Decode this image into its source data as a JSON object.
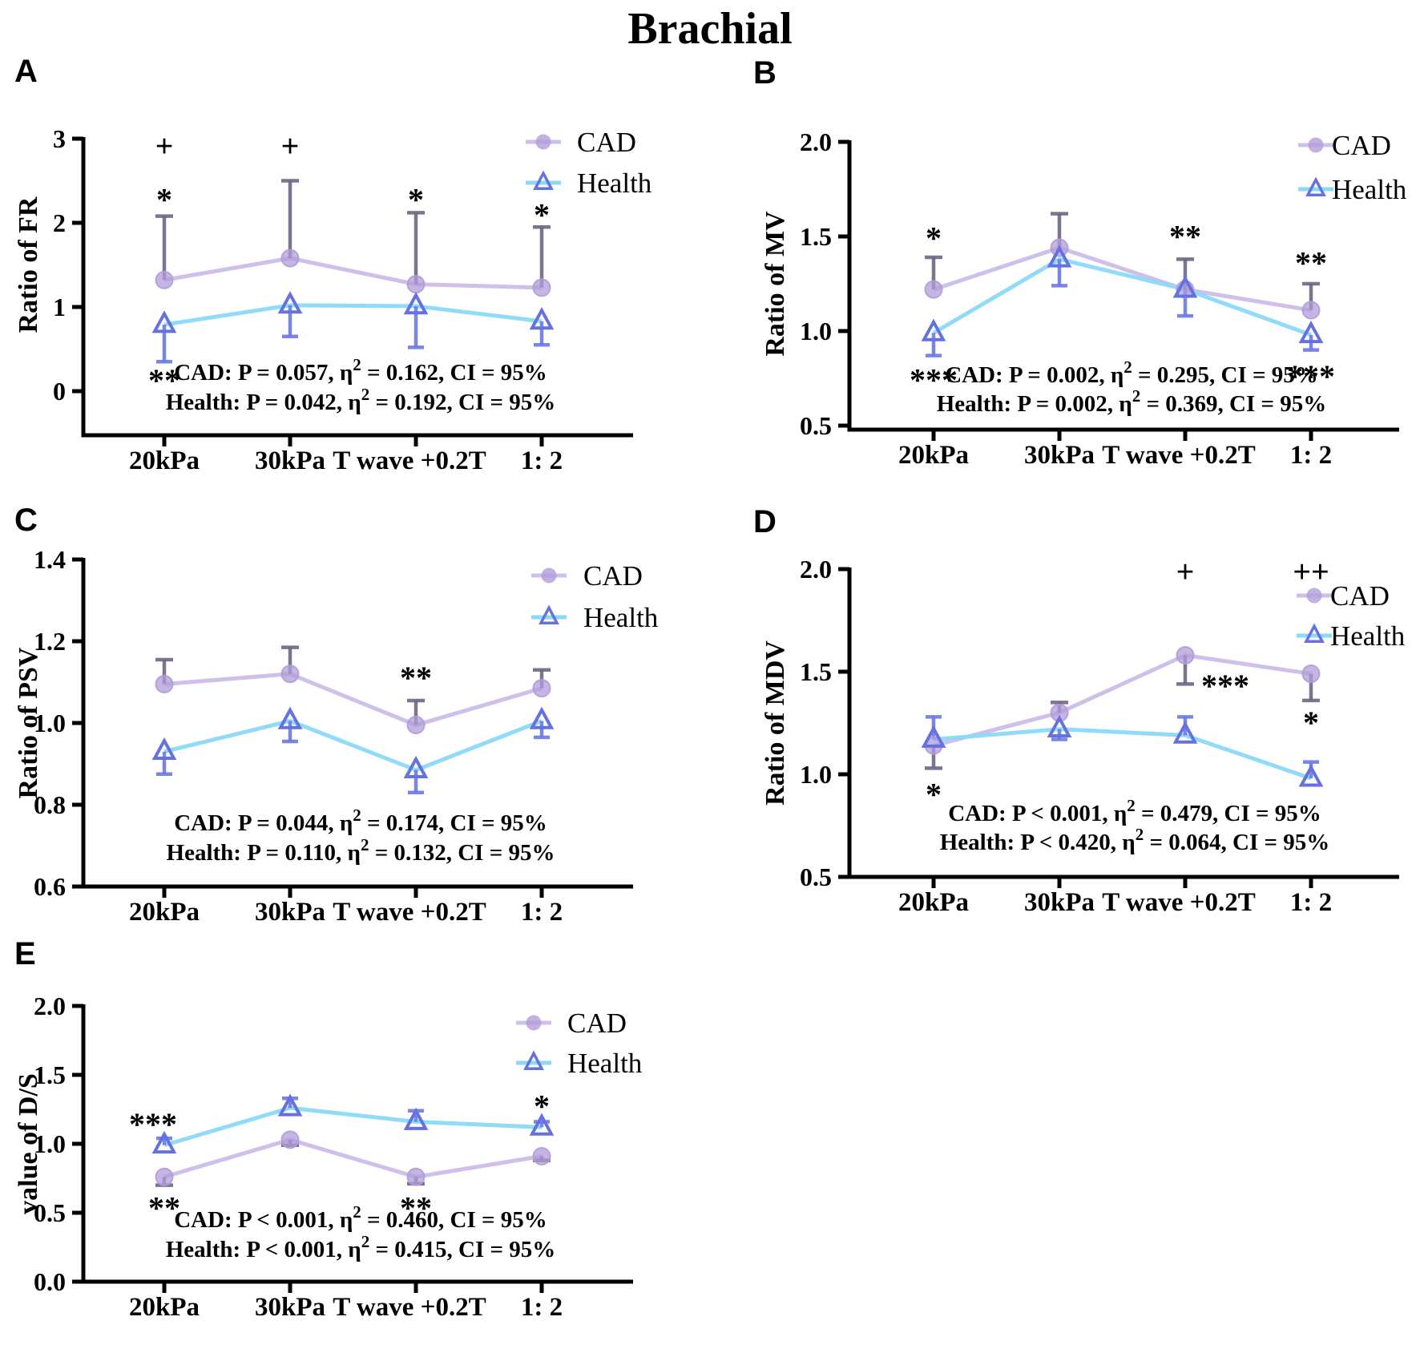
{
  "title": "Brachial",
  "colors": {
    "cad_line": "#c9b9e8",
    "cad_fill": "#b19cd8",
    "cad_error": "#6f6584",
    "health_line": "#8ad9f9",
    "health_stroke": "#6472e0",
    "health_error": "#6c79e2",
    "axis": "#000000",
    "text": "#000000"
  },
  "legend": {
    "cad_label": "CAD",
    "health_label": "Health"
  },
  "categories": [
    "20kPa",
    "30kPa",
    "T wave +0.2T",
    "1: 2"
  ],
  "chart_data": [
    {
      "id": "A",
      "type": "line",
      "panel_label": "A",
      "ylabel": "Ratio of FR",
      "ylim": [
        0,
        3
      ],
      "yticks": [
        "3",
        "2",
        "1",
        "0"
      ],
      "categories": [
        "20kPa",
        "30kPa",
        "T wave +0.2T",
        "1: 2"
      ],
      "series": [
        {
          "name": "CAD",
          "values": [
            1.32,
            1.58,
            1.27,
            1.23
          ],
          "err_up": [
            2.08,
            2.5,
            2.12,
            1.95
          ],
          "err_dn": [
            null,
            null,
            null,
            null
          ]
        },
        {
          "name": "Health",
          "values": [
            0.79,
            1.02,
            1.01,
            0.83
          ],
          "err_up": [
            null,
            null,
            null,
            null
          ],
          "err_dn": [
            0.35,
            0.65,
            0.52,
            0.55
          ]
        }
      ],
      "significance": [
        {
          "cat": 0,
          "v": 2.92,
          "text": "+"
        },
        {
          "cat": 1,
          "v": 2.92,
          "text": "+"
        },
        {
          "cat": 0,
          "v": 2.32,
          "text": "*"
        },
        {
          "cat": 2,
          "v": 2.32,
          "text": "*"
        },
        {
          "cat": 3,
          "v": 2.14,
          "text": "*"
        },
        {
          "cat": 0,
          "v": 0.17,
          "text": "**"
        }
      ],
      "annotations": [
        "CAD: P = 0.057, η² = 0.162, CI = 95%",
        "Health: P = 0.042, η² = 0.192, CI = 95%"
      ]
    },
    {
      "id": "B",
      "type": "line",
      "panel_label": "B",
      "ylabel": "Ratio of MV",
      "ylim": [
        0.5,
        2.0
      ],
      "yticks": [
        "2.0",
        "1.5",
        "1.0",
        "0.5"
      ],
      "categories": [
        "20kPa",
        "30kPa",
        "T wave +0.2T",
        "1: 2"
      ],
      "series": [
        {
          "name": "CAD",
          "values": [
            1.22,
            1.44,
            1.22,
            1.11
          ],
          "err_up": [
            1.39,
            1.62,
            1.38,
            1.25
          ],
          "err_dn": [
            null,
            null,
            null,
            null
          ]
        },
        {
          "name": "Health",
          "values": [
            0.99,
            1.38,
            1.22,
            0.98
          ],
          "err_up": [
            null,
            null,
            null,
            null
          ],
          "err_dn": [
            0.87,
            1.24,
            1.08,
            0.9
          ]
        }
      ],
      "significance": [
        {
          "cat": 0,
          "v": 1.51,
          "text": "*"
        },
        {
          "cat": 2,
          "v": 1.52,
          "text": "**"
        },
        {
          "cat": 3,
          "v": 1.38,
          "text": "**"
        },
        {
          "cat": 0,
          "v": 0.76,
          "text": "***"
        },
        {
          "cat": 3,
          "v": 0.78,
          "text": "***"
        }
      ],
      "annotations": [
        "CAD: P = 0.002, η² = 0.295, CI = 95%",
        "Health: P = 0.002, η² = 0.369, CI = 95%"
      ]
    },
    {
      "id": "C",
      "type": "line",
      "panel_label": "C",
      "ylabel": "Ratio of PSV",
      "ylim": [
        0.6,
        1.4
      ],
      "yticks": [
        "1.4",
        "1.2",
        "1.0",
        "0.8",
        "0.6"
      ],
      "categories": [
        "20kPa",
        "30kPa",
        "T wave +0.2T",
        "1: 2"
      ],
      "series": [
        {
          "name": "CAD",
          "values": [
            1.095,
            1.12,
            0.995,
            1.085
          ],
          "err_up": [
            1.155,
            1.185,
            1.055,
            1.13
          ],
          "err_dn": [
            null,
            null,
            null,
            null
          ]
        },
        {
          "name": "Health",
          "values": [
            0.93,
            1.005,
            0.885,
            1.005
          ],
          "err_up": [
            null,
            null,
            null,
            null
          ],
          "err_dn": [
            0.875,
            0.955,
            0.83,
            0.965
          ]
        }
      ],
      "significance": [
        {
          "cat": 2,
          "v": 1.12,
          "text": "**"
        }
      ],
      "annotations": [
        "CAD: P = 0.044, η² = 0.174, CI = 95%",
        "Health: P = 0.110, η² = 0.132, CI = 95%"
      ]
    },
    {
      "id": "D",
      "type": "line",
      "panel_label": "D",
      "ylabel": "Ratio of MDV",
      "ylim": [
        0.5,
        2.0
      ],
      "yticks": [
        "2.0",
        "1.5",
        "1.0",
        "0.5"
      ],
      "categories": [
        "20kPa",
        "30kPa",
        "T wave +0.2T",
        "1: 2"
      ],
      "series": [
        {
          "name": "CAD",
          "values": [
            1.14,
            1.3,
            1.58,
            1.49
          ],
          "err_up": [
            null,
            1.35,
            null,
            null
          ],
          "err_dn": [
            1.03,
            null,
            1.44,
            1.36
          ]
        },
        {
          "name": "Health",
          "values": [
            1.17,
            1.22,
            1.19,
            0.98
          ],
          "err_up": [
            1.28,
            null,
            1.28,
            1.06
          ],
          "err_dn": [
            null,
            1.17,
            null,
            null
          ]
        }
      ],
      "significance": [
        {
          "cat": 2,
          "v": 1.99,
          "text": "+"
        },
        {
          "cat": 3,
          "v": 1.99,
          "text": "++"
        },
        {
          "cat": 2,
          "v": 1.45,
          "text": "***",
          "dx": 50
        },
        {
          "cat": 0,
          "v": 0.92,
          "text": "*"
        },
        {
          "cat": 3,
          "v": 1.27,
          "text": "*"
        }
      ],
      "annotations": [
        "CAD: P < 0.001, η² = 0.479, CI = 95%",
        "Health: P < 0.420, η² = 0.064, CI = 95%"
      ]
    },
    {
      "id": "E",
      "type": "line",
      "panel_label": "E",
      "ylabel": "value of D/S",
      "ylim": [
        0.0,
        2.0
      ],
      "yticks": [
        "2.0",
        "1.5",
        "1.0",
        "0.5",
        "0.0"
      ],
      "categories": [
        "20kPa",
        "30kPa",
        "T wave +0.2T",
        "1: 2"
      ],
      "series": [
        {
          "name": "CAD",
          "values": [
            0.76,
            1.03,
            0.76,
            0.91
          ],
          "err_up": [
            null,
            null,
            null,
            null
          ],
          "err_dn": [
            0.7,
            0.99,
            0.71,
            0.88
          ]
        },
        {
          "name": "Health",
          "values": [
            0.99,
            1.26,
            1.16,
            1.12
          ],
          "err_up": [
            1.04,
            1.33,
            1.24,
            1.16
          ],
          "err_dn": [
            null,
            null,
            null,
            null
          ]
        }
      ],
      "significance": [
        {
          "cat": 0,
          "v": 1.17,
          "text": "***",
          "dx": -14
        },
        {
          "cat": 0,
          "v": 0.56,
          "text": "**"
        },
        {
          "cat": 2,
          "v": 0.56,
          "text": "**"
        },
        {
          "cat": 3,
          "v": 1.3,
          "text": "*"
        }
      ],
      "annotations": [
        "CAD: P < 0.001, η² = 0.460, CI = 95%",
        "Health: P < 0.001, η² = 0.415, CI = 95%"
      ]
    }
  ]
}
